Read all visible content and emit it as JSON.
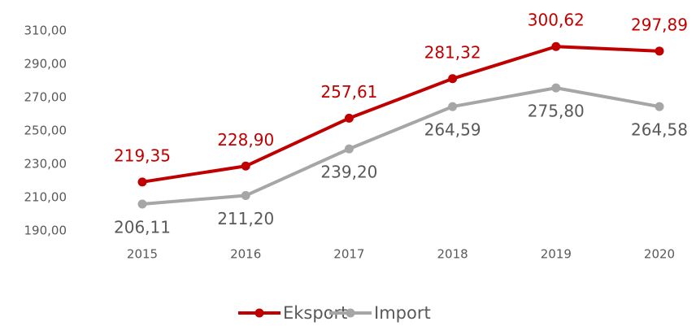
{
  "chart_data": {
    "type": "line",
    "categories": [
      "2015",
      "2016",
      "2017",
      "2018",
      "2019",
      "2020"
    ],
    "series": [
      {
        "name": "Eksport",
        "color": "#c00000",
        "label_color": "#c00000",
        "label_position": "above",
        "values": [
          219.35,
          228.9,
          257.61,
          281.32,
          300.62,
          297.89
        ],
        "value_labels": [
          "219,35",
          "228,90",
          "257,61",
          "281,32",
          "300,62",
          "297,89"
        ]
      },
      {
        "name": "Import",
        "color": "#a6a6a6",
        "label_color": "#595959",
        "label_position": "below",
        "values": [
          206.11,
          211.2,
          239.2,
          264.59,
          275.8,
          264.58
        ],
        "value_labels": [
          "206,11",
          "211,20",
          "239,20",
          "264,59",
          "275,80",
          "264,58"
        ]
      }
    ],
    "ylim": [
      190,
      310
    ],
    "yticks": [
      {
        "value": 190,
        "label": "190,00"
      },
      {
        "value": 210,
        "label": "210,00"
      },
      {
        "value": 230,
        "label": "230,00"
      },
      {
        "value": 250,
        "label": "250,00"
      },
      {
        "value": 270,
        "label": "270,00"
      },
      {
        "value": 290,
        "label": "290,00"
      },
      {
        "value": 310,
        "label": "310,00"
      }
    ],
    "legend": "bottom"
  }
}
